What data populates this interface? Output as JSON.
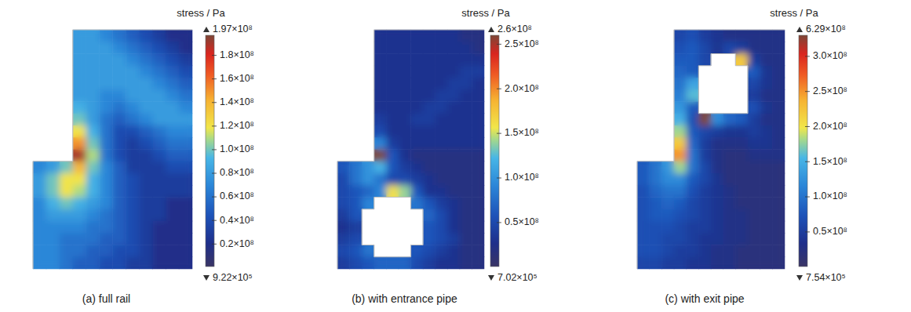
{
  "chart_data": [
    {
      "type": "heatmap",
      "title": "(a) full rail",
      "colorbar_label": "stress / Pa",
      "max": {
        "value": 197000000.0,
        "label": "1.97×10⁸"
      },
      "min": {
        "value": 922000.0,
        "label": "9.22×10⁵"
      },
      "colorbar": {
        "range": [
          922000.0,
          197000000.0
        ],
        "ticks": [
          {
            "value": 20000000.0,
            "label": "0.2×10⁸"
          },
          {
            "value": 40000000.0,
            "label": "0.4×10⁸"
          },
          {
            "value": 60000000.0,
            "label": "0.6×10⁸"
          },
          {
            "value": 80000000.0,
            "label": "0.8×10⁸"
          },
          {
            "value": 100000000.0,
            "label": "1.0×10⁸"
          },
          {
            "value": 120000000.0,
            "label": "1.2×10⁸"
          },
          {
            "value": 140000000.0,
            "label": "1.4×10⁸"
          },
          {
            "value": 160000000.0,
            "label": "1.6×10⁸"
          },
          {
            "value": 180000000.0,
            "label": "1.8×10⁸"
          }
        ]
      },
      "cells": [
        [
          null,
          null,
          null,
          80000000.0,
          80000000.0,
          70000000.0,
          60000000.0,
          50000000.0,
          40000000.0,
          30000000.0,
          20000000.0,
          20000000.0
        ],
        [
          null,
          null,
          null,
          80000000.0,
          80000000.0,
          80000000.0,
          70000000.0,
          60000000.0,
          50000000.0,
          40000000.0,
          30000000.0,
          20000000.0
        ],
        [
          null,
          null,
          null,
          80000000.0,
          80000000.0,
          80000000.0,
          80000000.0,
          70000000.0,
          60000000.0,
          50000000.0,
          40000000.0,
          30000000.0
        ],
        [
          null,
          null,
          null,
          80000000.0,
          80000000.0,
          80000000.0,
          80000000.0,
          80000000.0,
          70000000.0,
          60000000.0,
          50000000.0,
          40000000.0
        ],
        [
          null,
          null,
          null,
          80000000.0,
          80000000.0,
          80000000.0,
          80000000.0,
          80000000.0,
          80000000.0,
          70000000.0,
          60000000.0,
          50000000.0
        ],
        [
          null,
          null,
          null,
          80000000.0,
          80000000.0,
          70000000.0,
          70000000.0,
          80000000.0,
          80000000.0,
          80000000.0,
          70000000.0,
          60000000.0
        ],
        [
          null,
          null,
          null,
          90000000.0,
          80000000.0,
          70000000.0,
          60000000.0,
          70000000.0,
          80000000.0,
          80000000.0,
          80000000.0,
          70000000.0
        ],
        [
          null,
          null,
          null,
          100000000.0,
          80000000.0,
          60000000.0,
          50000000.0,
          60000000.0,
          70000000.0,
          80000000.0,
          80000000.0,
          80000000.0
        ],
        [
          null,
          null,
          null,
          120000000.0,
          90000000.0,
          60000000.0,
          40000000.0,
          40000000.0,
          50000000.0,
          60000000.0,
          70000000.0,
          70000000.0
        ],
        [
          null,
          null,
          null,
          150000000.0,
          100000000.0,
          60000000.0,
          40000000.0,
          30000000.0,
          40000000.0,
          50000000.0,
          60000000.0,
          60000000.0
        ],
        [
          null,
          null,
          null,
          190000000.0,
          110000000.0,
          60000000.0,
          40000000.0,
          30000000.0,
          30000000.0,
          40000000.0,
          50000000.0,
          50000000.0
        ],
        [
          70000000.0,
          80000000.0,
          100000000.0,
          140000000.0,
          100000000.0,
          70000000.0,
          50000000.0,
          30000000.0,
          30000000.0,
          30000000.0,
          40000000.0,
          40000000.0
        ],
        [
          80000000.0,
          100000000.0,
          120000000.0,
          120000000.0,
          90000000.0,
          70000000.0,
          50000000.0,
          40000000.0,
          30000000.0,
          30000000.0,
          30000000.0,
          30000000.0
        ],
        [
          80000000.0,
          100000000.0,
          120000000.0,
          110000000.0,
          90000000.0,
          70000000.0,
          50000000.0,
          40000000.0,
          30000000.0,
          30000000.0,
          30000000.0,
          30000000.0
        ],
        [
          70000000.0,
          90000000.0,
          100000000.0,
          90000000.0,
          80000000.0,
          70000000.0,
          50000000.0,
          40000000.0,
          30000000.0,
          30000000.0,
          20000000.0,
          20000000.0
        ],
        [
          70000000.0,
          80000000.0,
          80000000.0,
          80000000.0,
          70000000.0,
          60000000.0,
          50000000.0,
          40000000.0,
          30000000.0,
          30000000.0,
          20000000.0,
          20000000.0
        ],
        [
          70000000.0,
          70000000.0,
          70000000.0,
          70000000.0,
          60000000.0,
          60000000.0,
          50000000.0,
          40000000.0,
          30000000.0,
          20000000.0,
          20000000.0,
          20000000.0
        ],
        [
          70000000.0,
          70000000.0,
          60000000.0,
          60000000.0,
          60000000.0,
          50000000.0,
          50000000.0,
          40000000.0,
          30000000.0,
          20000000.0,
          20000000.0,
          20000000.0
        ],
        [
          70000000.0,
          70000000.0,
          60000000.0,
          60000000.0,
          50000000.0,
          50000000.0,
          40000000.0,
          40000000.0,
          30000000.0,
          20000000.0,
          20000000.0,
          20000000.0
        ],
        [
          70000000.0,
          70000000.0,
          60000000.0,
          50000000.0,
          50000000.0,
          40000000.0,
          40000000.0,
          30000000.0,
          30000000.0,
          20000000.0,
          20000000.0,
          20000000.0
        ]
      ]
    },
    {
      "type": "heatmap",
      "title": "(b) with entrance pipe",
      "colorbar_label": "stress / Pa",
      "max": {
        "value": 260000000.0,
        "label": "2.6×10⁸"
      },
      "min": {
        "value": 702000.0,
        "label": "7.02×10⁵"
      },
      "colorbar": {
        "range": [
          702000.0,
          260000000.0
        ],
        "ticks": [
          {
            "value": 50000000.0,
            "label": "0.5×10⁸"
          },
          {
            "value": 100000000.0,
            "label": "1.0×10⁸"
          },
          {
            "value": 150000000.0,
            "label": "1.5×10⁸"
          },
          {
            "value": 200000000.0,
            "label": "2.0×10⁸"
          },
          {
            "value": 250000000.0,
            "label": "2.5×10⁸"
          }
        ]
      },
      "cells": [
        [
          null,
          null,
          null,
          30000000.0,
          30000000.0,
          30000000.0,
          30000000.0,
          30000000.0,
          30000000.0,
          30000000.0,
          20000000.0,
          20000000.0
        ],
        [
          null,
          null,
          null,
          30000000.0,
          30000000.0,
          30000000.0,
          30000000.0,
          30000000.0,
          30000000.0,
          30000000.0,
          30000000.0,
          20000000.0
        ],
        [
          null,
          null,
          null,
          30000000.0,
          30000000.0,
          30000000.0,
          30000000.0,
          30000000.0,
          30000000.0,
          30000000.0,
          30000000.0,
          30000000.0
        ],
        [
          null,
          null,
          null,
          30000000.0,
          30000000.0,
          30000000.0,
          30000000.0,
          30000000.0,
          30000000.0,
          30000000.0,
          40000000.0,
          40000000.0
        ],
        [
          null,
          null,
          null,
          30000000.0,
          30000000.0,
          30000000.0,
          30000000.0,
          30000000.0,
          30000000.0,
          40000000.0,
          40000000.0,
          30000000.0
        ],
        [
          null,
          null,
          null,
          30000000.0,
          30000000.0,
          30000000.0,
          30000000.0,
          30000000.0,
          40000000.0,
          40000000.0,
          30000000.0,
          30000000.0
        ],
        [
          null,
          null,
          null,
          30000000.0,
          30000000.0,
          30000000.0,
          30000000.0,
          40000000.0,
          40000000.0,
          30000000.0,
          30000000.0,
          30000000.0
        ],
        [
          null,
          null,
          null,
          40000000.0,
          30000000.0,
          30000000.0,
          40000000.0,
          40000000.0,
          30000000.0,
          30000000.0,
          30000000.0,
          30000000.0
        ],
        [
          null,
          null,
          null,
          50000000.0,
          30000000.0,
          30000000.0,
          30000000.0,
          30000000.0,
          30000000.0,
          30000000.0,
          30000000.0,
          30000000.0
        ],
        [
          null,
          null,
          null,
          90000000.0,
          40000000.0,
          30000000.0,
          30000000.0,
          30000000.0,
          30000000.0,
          30000000.0,
          30000000.0,
          30000000.0
        ],
        [
          null,
          null,
          null,
          260000000.0,
          60000000.0,
          30000000.0,
          20000000.0,
          20000000.0,
          20000000.0,
          20000000.0,
          20000000.0,
          20000000.0
        ],
        [
          60000000.0,
          80000000.0,
          100000000.0,
          120000000.0,
          60000000.0,
          40000000.0,
          30000000.0,
          20000000.0,
          20000000.0,
          20000000.0,
          20000000.0,
          20000000.0
        ],
        [
          50000000.0,
          80000000.0,
          100000000.0,
          80000000.0,
          50000000.0,
          50000000.0,
          40000000.0,
          30000000.0,
          20000000.0,
          20000000.0,
          20000000.0,
          20000000.0
        ],
        [
          50000000.0,
          60000000.0,
          70000000.0,
          90000000.0,
          160000000.0,
          140000000.0,
          60000000.0,
          30000000.0,
          30000000.0,
          20000000.0,
          20000000.0,
          20000000.0
        ],
        [
          50000000.0,
          60000000.0,
          90000000.0,
          null,
          null,
          null,
          80000000.0,
          60000000.0,
          40000000.0,
          30000000.0,
          20000000.0,
          20000000.0
        ],
        [
          40000000.0,
          60000000.0,
          null,
          null,
          null,
          null,
          null,
          70000000.0,
          50000000.0,
          30000000.0,
          20000000.0,
          20000000.0
        ],
        [
          30000000.0,
          40000000.0,
          null,
          null,
          null,
          null,
          null,
          60000000.0,
          50000000.0,
          30000000.0,
          20000000.0,
          20000000.0
        ],
        [
          40000000.0,
          50000000.0,
          null,
          null,
          null,
          null,
          null,
          60000000.0,
          50000000.0,
          40000000.0,
          20000000.0,
          20000000.0
        ],
        [
          50000000.0,
          60000000.0,
          80000000.0,
          null,
          null,
          null,
          60000000.0,
          50000000.0,
          40000000.0,
          30000000.0,
          20000000.0,
          20000000.0
        ],
        [
          40000000.0,
          50000000.0,
          60000000.0,
          70000000.0,
          70000000.0,
          70000000.0,
          50000000.0,
          40000000.0,
          30000000.0,
          30000000.0,
          20000000.0,
          20000000.0
        ]
      ]
    },
    {
      "type": "heatmap",
      "title": "(c) with exit pipe",
      "colorbar_label": "stress / Pa",
      "max": {
        "value": 629000000.0,
        "label": "6.29×10⁸"
      },
      "min": {
        "value": 754000.0,
        "label": "7.54×10⁵"
      },
      "colorbar": {
        "range": [
          754000.0,
          330000000.0
        ],
        "ticks": [
          {
            "value": 50000000.0,
            "label": "0.5×10⁸"
          },
          {
            "value": 100000000.0,
            "label": "1.0×10⁸"
          },
          {
            "value": 150000000.0,
            "label": "1.5×10⁸"
          },
          {
            "value": 200000000.0,
            "label": "2.0×10⁸"
          },
          {
            "value": 250000000.0,
            "label": "2.5×10⁸"
          },
          {
            "value": 300000000.0,
            "label": "3.0×10⁸"
          }
        ]
      },
      "cells": [
        [
          null,
          null,
          null,
          60000000.0,
          70000000.0,
          50000000.0,
          40000000.0,
          30000000.0,
          30000000.0,
          30000000.0,
          30000000.0,
          30000000.0
        ],
        [
          null,
          null,
          null,
          70000000.0,
          80000000.0,
          60000000.0,
          40000000.0,
          60000000.0,
          50000000.0,
          30000000.0,
          30000000.0,
          30000000.0
        ],
        [
          null,
          null,
          null,
          80000000.0,
          80000000.0,
          60000000.0,
          null,
          null,
          220000000.0,
          50000000.0,
          30000000.0,
          30000000.0
        ],
        [
          null,
          null,
          null,
          90000000.0,
          80000000.0,
          null,
          null,
          null,
          null,
          80000000.0,
          40000000.0,
          30000000.0
        ],
        [
          null,
          null,
          null,
          100000000.0,
          140000000.0,
          null,
          null,
          null,
          null,
          60000000.0,
          40000000.0,
          30000000.0
        ],
        [
          null,
          null,
          null,
          110000000.0,
          160000000.0,
          null,
          null,
          null,
          null,
          50000000.0,
          30000000.0,
          30000000.0
        ],
        [
          null,
          null,
          null,
          130000000.0,
          80000000.0,
          null,
          null,
          null,
          null,
          70000000.0,
          40000000.0,
          30000000.0
        ],
        [
          null,
          null,
          null,
          150000000.0,
          70000000.0,
          629000000.0,
          120000000.0,
          90000000.0,
          80000000.0,
          50000000.0,
          30000000.0,
          30000000.0
        ],
        [
          null,
          null,
          null,
          180000000.0,
          80000000.0,
          60000000.0,
          50000000.0,
          40000000.0,
          40000000.0,
          50000000.0,
          40000000.0,
          30000000.0
        ],
        [
          null,
          null,
          null,
          220000000.0,
          90000000.0,
          50000000.0,
          30000000.0,
          30000000.0,
          30000000.0,
          40000000.0,
          40000000.0,
          30000000.0
        ],
        [
          null,
          null,
          null,
          250000000.0,
          100000000.0,
          50000000.0,
          30000000.0,
          20000000.0,
          20000000.0,
          30000000.0,
          30000000.0,
          30000000.0
        ],
        [
          80000000.0,
          100000000.0,
          130000000.0,
          180000000.0,
          100000000.0,
          60000000.0,
          30000000.0,
          20000000.0,
          20000000.0,
          20000000.0,
          20000000.0,
          20000000.0
        ],
        [
          80000000.0,
          100000000.0,
          120000000.0,
          120000000.0,
          80000000.0,
          60000000.0,
          40000000.0,
          20000000.0,
          20000000.0,
          20000000.0,
          20000000.0,
          20000000.0
        ],
        [
          70000000.0,
          90000000.0,
          100000000.0,
          100000000.0,
          70000000.0,
          50000000.0,
          40000000.0,
          30000000.0,
          20000000.0,
          20000000.0,
          20000000.0,
          20000000.0
        ],
        [
          70000000.0,
          80000000.0,
          90000000.0,
          80000000.0,
          60000000.0,
          50000000.0,
          40000000.0,
          30000000.0,
          20000000.0,
          20000000.0,
          20000000.0,
          20000000.0
        ],
        [
          70000000.0,
          80000000.0,
          80000000.0,
          70000000.0,
          60000000.0,
          50000000.0,
          40000000.0,
          30000000.0,
          30000000.0,
          20000000.0,
          20000000.0,
          20000000.0
        ],
        [
          70000000.0,
          70000000.0,
          70000000.0,
          60000000.0,
          50000000.0,
          50000000.0,
          40000000.0,
          30000000.0,
          30000000.0,
          20000000.0,
          20000000.0,
          20000000.0
        ],
        [
          70000000.0,
          70000000.0,
          60000000.0,
          60000000.0,
          50000000.0,
          40000000.0,
          40000000.0,
          30000000.0,
          30000000.0,
          20000000.0,
          20000000.0,
          20000000.0
        ],
        [
          70000000.0,
          70000000.0,
          60000000.0,
          50000000.0,
          50000000.0,
          40000000.0,
          30000000.0,
          30000000.0,
          20000000.0,
          20000000.0,
          20000000.0,
          20000000.0
        ],
        [
          60000000.0,
          60000000.0,
          50000000.0,
          50000000.0,
          40000000.0,
          40000000.0,
          30000000.0,
          30000000.0,
          20000000.0,
          20000000.0,
          20000000.0,
          20000000.0
        ]
      ]
    }
  ]
}
